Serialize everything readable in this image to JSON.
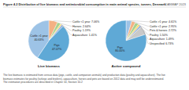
{
  "figure": {
    "title": "Figure 4.2 Distribution of live biomass and antimicrobial consumption in main animal species, tonnes, Denmark",
    "source": "DANMAP 2023",
    "note": [
      "The live biomass is estimated from census data (pigs, cattle, and companion animals) and production data (poultry and aquaculture). The live",
      "biomass estimates for poultry (turkeys and broilers), aquaculture, horses and pets are based on 2012 data and may well be underestimated.",
      "The estimation procedures are described in Chapter 10, Section 10.2"
    ]
  },
  "chart_data": [
    {
      "type": "pie",
      "title": "Live biomass",
      "data_labels": true,
      "categories": [
        "Cattle <1 year",
        "Horses",
        "Poultry",
        "Aquaculture",
        "Pigs",
        "Cattle >1 year"
      ],
      "values": [
        7.06,
        2.64,
        1.19,
        1.41,
        47.07,
        40.63
      ],
      "value_labels": [
        "7.06%",
        "2.64%",
        "1.19%",
        "1.41%",
        "47.07%",
        "40.63%"
      ],
      "colors": [
        "#f4b183",
        "#a9d18e",
        "#ffd966",
        "#8faadc",
        "#5fa9d6",
        "#9dc3e6"
      ]
    },
    {
      "type": "pie",
      "title": "Active compound",
      "data_labels": true,
      "categories": [
        "Cattle >1 year",
        "Cattle <1 year",
        "Pets & horses",
        "Poultry",
        "Aquaculture",
        "Unspecified",
        "Pigs"
      ],
      "values": [
        4.61,
        2.95,
        2.72,
        1.5,
        1.49,
        6.73,
        80.0
      ],
      "value_labels": [
        "4.61%",
        "2.95%",
        "2.72%",
        "1.50%",
        "1.49%",
        "6.73%",
        "80.00%"
      ],
      "colors": [
        "#9dc3e6",
        "#f4b183",
        "#a9d18e",
        "#ffd966",
        "#8faadc",
        "#c9c9c9",
        "#5fa9d6"
      ]
    }
  ]
}
